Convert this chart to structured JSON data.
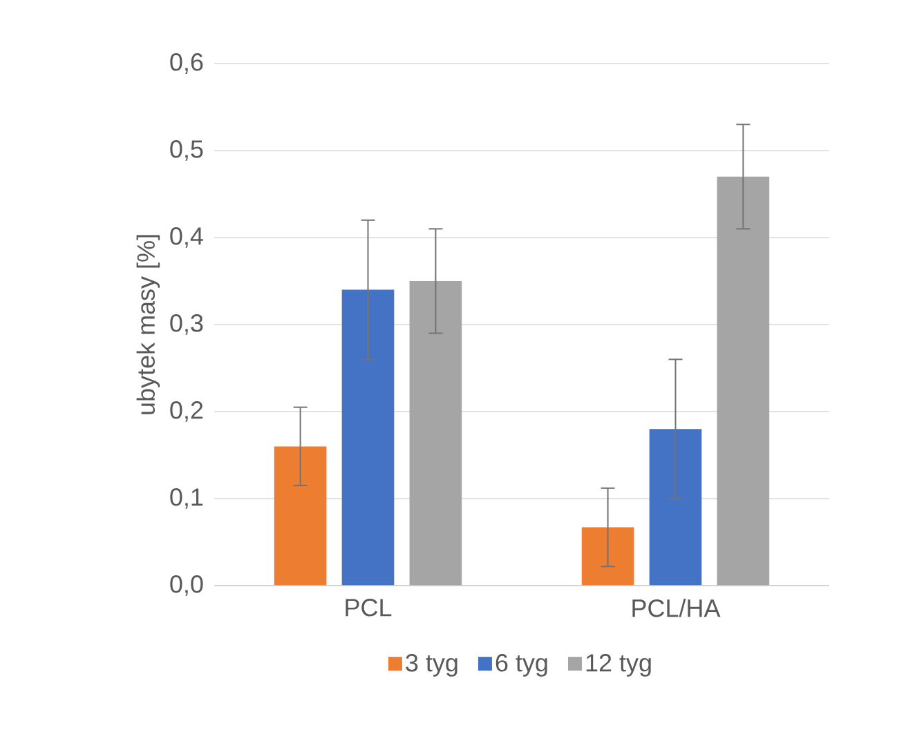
{
  "chart_data": {
    "type": "bar",
    "ylabel": "ubytek masy [%]",
    "categories": [
      "PCL",
      "PCL/HA"
    ],
    "series": [
      {
        "name": "3 tyg",
        "color": "#ed7d31",
        "values": [
          0.16,
          0.067
        ],
        "errors": [
          0.045,
          0.045
        ]
      },
      {
        "name": "6 tyg",
        "color": "#4472c4",
        "values": [
          0.34,
          0.18
        ],
        "errors": [
          0.08,
          0.08
        ]
      },
      {
        "name": "12 tyg",
        "color": "#a5a5a5",
        "values": [
          0.35,
          0.47
        ],
        "errors": [
          0.06,
          0.06
        ]
      }
    ],
    "ylim": [
      0,
      0.6
    ],
    "yticks": [
      {
        "value": 0,
        "label": "0,0"
      },
      {
        "value": 0.1,
        "label": "0,1"
      },
      {
        "value": 0.2,
        "label": "0,2"
      },
      {
        "value": 0.3,
        "label": "0,3"
      },
      {
        "value": 0.4,
        "label": "0,4"
      },
      {
        "value": 0.5,
        "label": "0,5"
      },
      {
        "value": 0.6,
        "label": "0,6"
      }
    ],
    "grid": "y",
    "legend": "bottom"
  }
}
